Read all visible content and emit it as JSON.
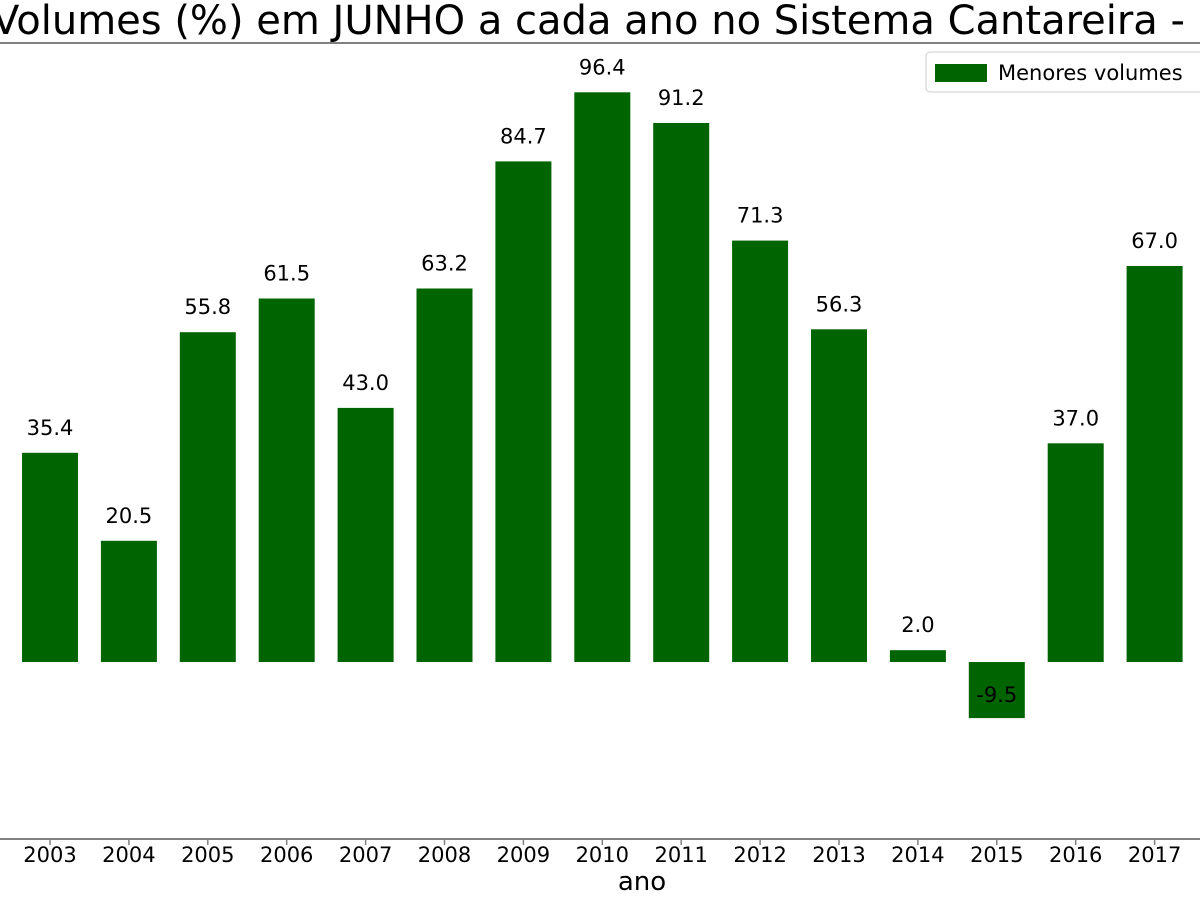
{
  "chart_data": {
    "type": "bar",
    "title": "Volumes (%) em JUNHO a cada ano no Sistema Cantareira  - I",
    "xlabel": "ano",
    "ylabel": "",
    "categories": [
      "2003",
      "2004",
      "2005",
      "2006",
      "2007",
      "2008",
      "2009",
      "2010",
      "2011",
      "2012",
      "2013",
      "2014",
      "2015",
      "2016",
      "2017"
    ],
    "series": [
      {
        "name": "Menores volumes",
        "values": [
          35.4,
          20.5,
          55.8,
          61.5,
          43.0,
          63.2,
          84.7,
          96.4,
          91.2,
          71.3,
          56.3,
          2.0,
          -9.5,
          37.0,
          67.0
        ],
        "labels": [
          "35.4",
          "20.5",
          "55.8",
          "61.5",
          "43.0",
          "63.2",
          "84.7",
          "96.4",
          "91.2",
          "71.3",
          "56.3",
          "2.0",
          "-9.5",
          "37.0",
          "67.0"
        ]
      }
    ],
    "ylim": [
      -30,
      105
    ],
    "grid": false,
    "legend_position": "top-right",
    "colors": {
      "bar": "#006400",
      "axis": "#808080",
      "text": "#000000"
    }
  }
}
